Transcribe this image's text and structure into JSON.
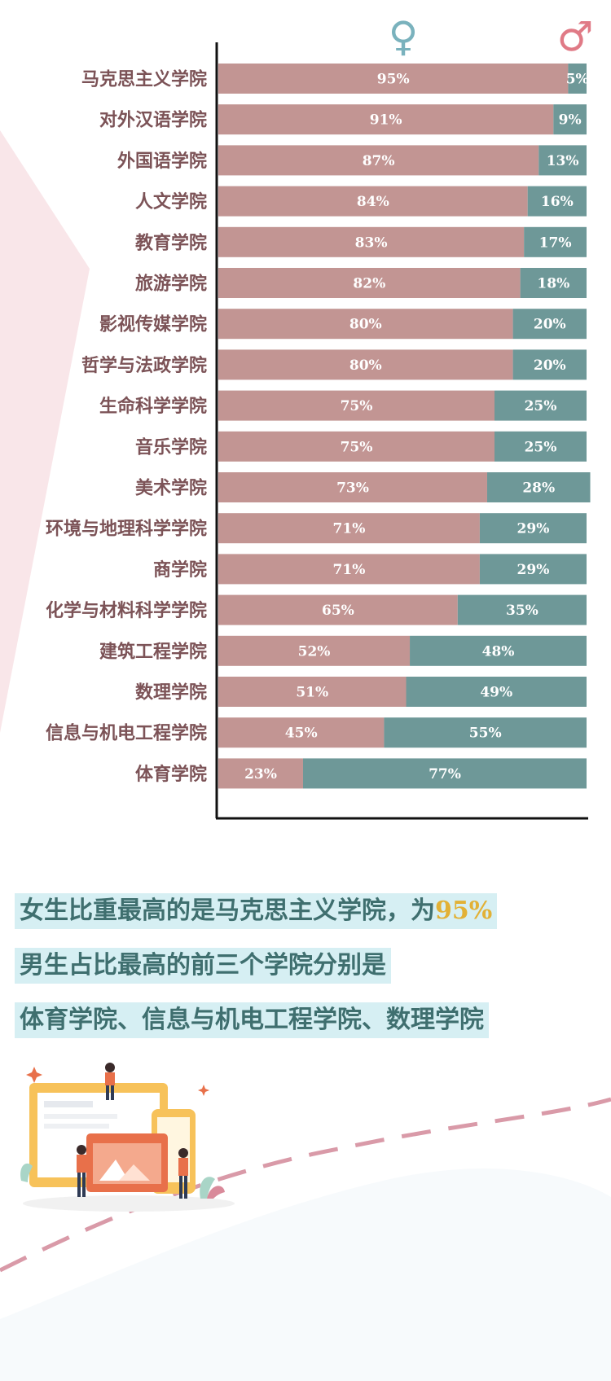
{
  "chart_data": {
    "type": "bar",
    "stacked": true,
    "orientation": "horizontal",
    "categories": [
      "马克思主义学院",
      "对外汉语学院",
      "外国语学院",
      "人文学院",
      "教育学院",
      "旅游学院",
      "影视传媒学院",
      "哲学与法政学院",
      "生命科学学院",
      "音乐学院",
      "美术学院",
      "环境与地理科学学院",
      "商学院",
      "化学与材料科学学院",
      "建筑工程学院",
      "数理学院",
      "信息与机电工程学院",
      "体育学院"
    ],
    "series": [
      {
        "values": [
          95,
          91,
          87,
          84,
          83,
          82,
          80,
          80,
          75,
          75,
          73,
          71,
          71,
          65,
          52,
          51,
          45,
          23
        ],
        "color": "#c29593"
      },
      {
        "values": [
          5,
          9,
          13,
          16,
          17,
          18,
          20,
          20,
          25,
          25,
          28,
          29,
          29,
          35,
          48,
          49,
          55,
          77
        ],
        "color": "#6e9898"
      }
    ],
    "value_suffix": "%",
    "xlim": [
      0,
      100
    ],
    "legend_symbols": [
      "♀",
      "♂"
    ],
    "legend_colors": [
      "#7ab2bd",
      "#e07a86"
    ],
    "grid": false
  },
  "summary": {
    "line1_prefix": "女生比重最高的是马克思主义学院，为",
    "line1_value": "95%",
    "line2": "男生占比最高的前三个学院分别是",
    "line3": "体育学院、信息与机电工程学院、数理学院"
  },
  "colors": {
    "label": "#7c5357",
    "highlight_bg": "#d6eff3",
    "highlight_text": "#3f6f6f",
    "accent": "#e2b136",
    "decor_pink": "#f6dfe3",
    "decor_dash": "#d99aa8"
  }
}
